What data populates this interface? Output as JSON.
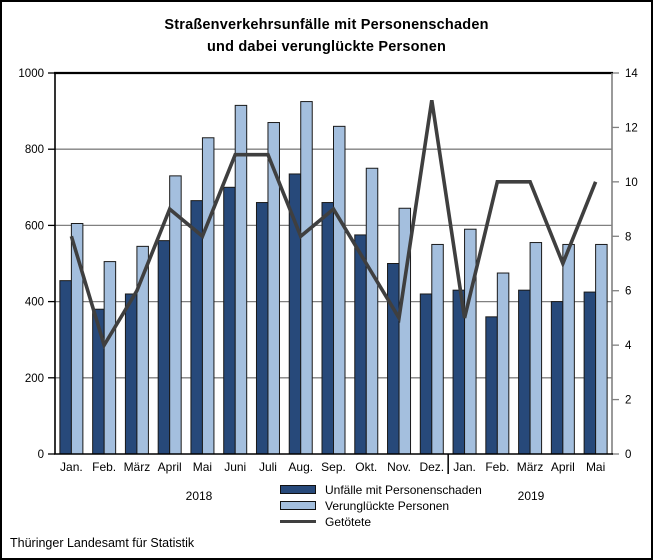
{
  "title": {
    "line1": "Straßenverkehrsunfälle mit Personenschaden",
    "line2": "und dabei verunglückte Personen"
  },
  "footer": "Thüringer Landesamt für Statistik",
  "legend": [
    {
      "label": "Unfälle mit Personenschaden",
      "type": "bar",
      "color": "#27497a"
    },
    {
      "label": "Verunglückte Personen",
      "type": "bar",
      "color": "#a4bfde"
    },
    {
      "label": "Getötete",
      "type": "line",
      "color": "#3f3f3f"
    }
  ],
  "colors": {
    "bar_dark": "#27497a",
    "bar_light": "#a4bfde",
    "line": "#3f3f3f",
    "grid": "#808080",
    "axis": "#000000",
    "bar_border": "#1a1a1a"
  },
  "chart_data": {
    "type": "bar",
    "subtype": "grouped bars with overlaid line on secondary axis",
    "title": "Straßenverkehrsunfälle mit Personenschaden und dabei verunglückte Personen",
    "categories": [
      "Jan.",
      "Feb.",
      "März",
      "April",
      "Mai",
      "Juni",
      "Juli",
      "Aug.",
      "Sep.",
      "Okt.",
      "Nov.",
      "Dez.",
      "Jan.",
      "Feb.",
      "März",
      "April",
      "Mai"
    ],
    "year_groups": [
      {
        "label": "2018",
        "from": 0,
        "to": 11
      },
      {
        "label": "2019",
        "from": 12,
        "to": 16
      }
    ],
    "series": [
      {
        "name": "Unfälle mit Personenschaden",
        "type": "bar",
        "axis": "left",
        "color": "#27497a",
        "values": [
          455,
          380,
          420,
          560,
          665,
          700,
          660,
          735,
          660,
          575,
          500,
          420,
          430,
          360,
          430,
          400,
          425
        ]
      },
      {
        "name": "Verunglückte Personen",
        "type": "bar",
        "axis": "left",
        "color": "#a4bfde",
        "values": [
          605,
          505,
          545,
          730,
          830,
          915,
          870,
          925,
          860,
          750,
          645,
          550,
          590,
          475,
          555,
          550,
          550
        ]
      },
      {
        "name": "Getötete",
        "type": "line",
        "axis": "right",
        "color": "#3f3f3f",
        "values": [
          8,
          4,
          6,
          9,
          8,
          11,
          11,
          8,
          9,
          7,
          5,
          13,
          5,
          10,
          10,
          7,
          10
        ]
      }
    ],
    "left_axis": {
      "min": 0,
      "max": 1000,
      "step": 200,
      "ticks": [
        0,
        200,
        400,
        600,
        800,
        1000
      ]
    },
    "right_axis": {
      "min": 0,
      "max": 14,
      "step": 2,
      "ticks": [
        0,
        2,
        4,
        6,
        8,
        10,
        12,
        14
      ]
    },
    "grid": true,
    "legend_position": "bottom-center"
  }
}
